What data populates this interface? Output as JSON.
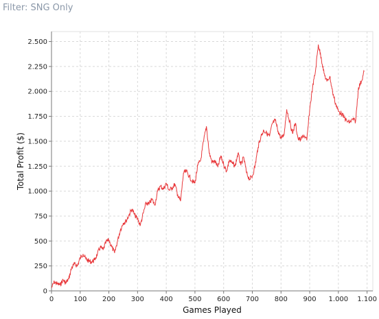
{
  "filter": {
    "label": "Filter: SNG Only"
  },
  "colors": {
    "series": "#e8383b",
    "grid": "#d8d8d8",
    "axis": "#777777"
  },
  "chart_data": {
    "type": "line",
    "xlabel": "Games Played",
    "ylabel": "Total Profit ($)",
    "xlim": [
      0,
      1120
    ],
    "ylim": [
      0,
      2600
    ],
    "xticks": [
      0,
      100,
      200,
      300,
      400,
      500,
      600,
      700,
      800,
      900,
      1000,
      1100
    ],
    "xtick_labels": [
      "0",
      "100",
      "200",
      "300",
      "400",
      "500",
      "600",
      "700",
      "800",
      "900",
      "1.000",
      "1.100"
    ],
    "yticks": [
      0,
      250,
      500,
      750,
      1000,
      1250,
      1500,
      1750,
      2000,
      2250,
      2500
    ],
    "ytick_labels": [
      "0",
      "250",
      "500",
      "750",
      "1.000",
      "1.250",
      "1.500",
      "1.750",
      "2.000",
      "2.250",
      "2.500"
    ],
    "grid": true,
    "series": [
      {
        "x": [
          0,
          10,
          20,
          30,
          40,
          50,
          60,
          70,
          80,
          90,
          100,
          110,
          120,
          130,
          140,
          150,
          160,
          170,
          180,
          190,
          200,
          210,
          220,
          230,
          240,
          250,
          260,
          270,
          280,
          290,
          300,
          310,
          320,
          330,
          340,
          350,
          360,
          370,
          380,
          390,
          400,
          410,
          420,
          430,
          440,
          450,
          460,
          470,
          480,
          490,
          500,
          510,
          520,
          530,
          540,
          550,
          560,
          570,
          580,
          590,
          600,
          610,
          620,
          630,
          640,
          650,
          660,
          670,
          680,
          690,
          700,
          710,
          720,
          730,
          740,
          750,
          760,
          770,
          780,
          790,
          800,
          810,
          820,
          830,
          840,
          850,
          860,
          870,
          880,
          890,
          900,
          910,
          920,
          930,
          940,
          950,
          960,
          970,
          980,
          990,
          1000,
          1010,
          1020,
          1030,
          1040,
          1050,
          1060,
          1070,
          1080,
          1090
        ],
        "y": [
          30,
          90,
          70,
          60,
          110,
          80,
          120,
          230,
          270,
          250,
          330,
          370,
          320,
          300,
          290,
          310,
          370,
          440,
          410,
          490,
          510,
          440,
          380,
          500,
          610,
          680,
          700,
          760,
          820,
          760,
          720,
          660,
          780,
          880,
          870,
          920,
          860,
          1000,
          1050,
          1020,
          1080,
          1010,
          1030,
          1070,
          960,
          900,
          1180,
          1200,
          1150,
          1100,
          1080,
          1260,
          1310,
          1500,
          1650,
          1380,
          1290,
          1300,
          1240,
          1350,
          1270,
          1200,
          1310,
          1280,
          1250,
          1380,
          1260,
          1340,
          1180,
          1120,
          1150,
          1260,
          1440,
          1550,
          1610,
          1580,
          1550,
          1680,
          1710,
          1600,
          1530,
          1560,
          1820,
          1700,
          1580,
          1680,
          1520,
          1520,
          1560,
          1510,
          1820,
          2040,
          2200,
          2470,
          2340,
          2180,
          2100,
          2150,
          1990,
          1880,
          1800,
          1780,
          1740,
          1700,
          1690,
          1720,
          1700,
          2040,
          2100,
          2200
        ]
      }
    ]
  }
}
